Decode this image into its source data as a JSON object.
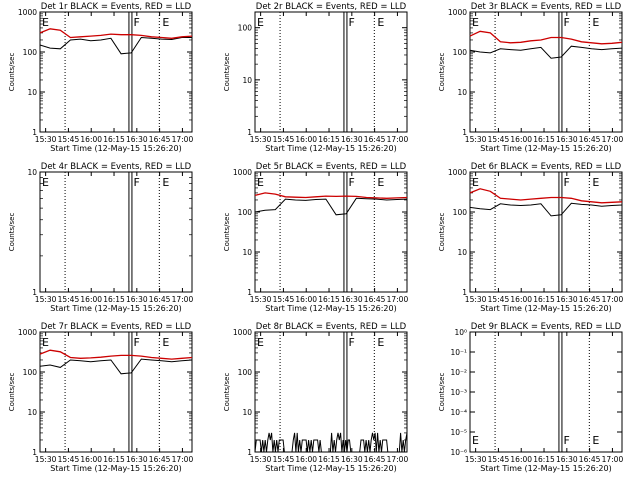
{
  "chart_data": [
    {
      "type": "line",
      "title": "Det 1r BLACK = Events, RED = LLD",
      "scale": "log",
      "ylabel": "Counts/sec",
      "xlabel": "Start Time (12-May-15 15:26:20)",
      "ytick_labels": [
        "1",
        "10",
        "100",
        "1000"
      ],
      "ylim": [
        1,
        1000
      ],
      "flags": [
        "E",
        "F",
        "E"
      ],
      "has_data": true,
      "series": [
        {
          "name": "Events",
          "color": "#000000",
          "values": [
            150,
            125,
            120,
            200,
            210,
            190,
            200,
            220,
            90,
            95,
            230,
            220,
            210,
            205,
            230,
            230
          ]
        },
        {
          "name": "LLD",
          "color": "#cc0000",
          "values": [
            300,
            380,
            350,
            230,
            240,
            250,
            260,
            280,
            270,
            270,
            260,
            240,
            230,
            220,
            240,
            250
          ]
        }
      ]
    },
    {
      "type": "line",
      "title": "Det 2r BLACK = Events, RED = LLD",
      "scale": "log",
      "ylabel": "Counts/sec",
      "xlabel": "Start Time (12-May-15 15:26:20)",
      "ytick_labels": [
        "1",
        "10",
        "100"
      ],
      "ylim": [
        1,
        200
      ],
      "flags": [
        "E",
        "F",
        "E"
      ],
      "has_data": false,
      "series": []
    },
    {
      "type": "line",
      "title": "Det 3r BLACK = Events, RED = LLD",
      "scale": "log",
      "ylabel": "Counts/sec",
      "xlabel": "Start Time (12-May-15 15:26:20)",
      "ytick_labels": [
        "1",
        "10",
        "100",
        "1000"
      ],
      "ylim": [
        1,
        1000
      ],
      "flags": [
        "E",
        "F",
        "E"
      ],
      "has_data": true,
      "series": [
        {
          "name": "Events",
          "color": "#000000",
          "values": [
            110,
            100,
            95,
            120,
            115,
            110,
            120,
            130,
            70,
            75,
            140,
            130,
            120,
            115,
            120,
            125
          ]
        },
        {
          "name": "LLD",
          "color": "#cc0000",
          "values": [
            250,
            330,
            300,
            180,
            170,
            175,
            190,
            200,
            230,
            230,
            210,
            180,
            170,
            160,
            165,
            175
          ]
        }
      ]
    },
    {
      "type": "line",
      "title": "Det 4r BLACK = Events, RED = LLD",
      "scale": "log",
      "ylabel": "Counts/sec",
      "xlabel": "Start Time (12-May-15 15:26:20)",
      "ytick_labels": [
        "1",
        "10"
      ],
      "ylim": [
        1,
        10
      ],
      "flags": [
        "E",
        "F",
        "E"
      ],
      "has_data": false,
      "series": []
    },
    {
      "type": "line",
      "title": "Det 5r BLACK = Events, RED = LLD",
      "scale": "log",
      "ylabel": "Counts/sec",
      "xlabel": "Start Time (12-May-15 15:26:20)",
      "ytick_labels": [
        "1",
        "10",
        "100",
        "1000"
      ],
      "ylim": [
        1,
        1000
      ],
      "flags": [
        "E",
        "F",
        "E"
      ],
      "has_data": true,
      "series": [
        {
          "name": "Events",
          "color": "#000000",
          "values": [
            100,
            110,
            115,
            210,
            200,
            195,
            205,
            210,
            85,
            90,
            220,
            215,
            210,
            200,
            205,
            210
          ]
        },
        {
          "name": "LLD",
          "color": "#cc0000",
          "values": [
            260,
            300,
            280,
            240,
            235,
            230,
            240,
            250,
            245,
            250,
            245,
            230,
            225,
            220,
            225,
            230
          ]
        }
      ]
    },
    {
      "type": "line",
      "title": "Det 6r BLACK = Events, RED = LLD",
      "scale": "log",
      "ylabel": "Counts/sec",
      "xlabel": "Start Time (12-May-15 15:26:20)",
      "ytick_labels": [
        "1",
        "10",
        "100",
        "1000"
      ],
      "ylim": [
        1,
        1000
      ],
      "flags": [
        "E",
        "F",
        "E"
      ],
      "has_data": true,
      "series": [
        {
          "name": "Events",
          "color": "#000000",
          "values": [
            130,
            120,
            115,
            160,
            150,
            145,
            150,
            160,
            80,
            85,
            165,
            155,
            150,
            140,
            145,
            150
          ]
        },
        {
          "name": "LLD",
          "color": "#cc0000",
          "values": [
            300,
            380,
            330,
            220,
            210,
            200,
            210,
            220,
            230,
            230,
            220,
            190,
            180,
            170,
            175,
            180
          ]
        }
      ]
    },
    {
      "type": "line",
      "title": "Det 7r BLACK = Events, RED = LLD",
      "scale": "log",
      "ylabel": "Counts/sec",
      "xlabel": "Start Time (12-May-15 15:26:20)",
      "ytick_labels": [
        "1",
        "10",
        "100",
        "1000"
      ],
      "ylim": [
        1,
        1000
      ],
      "flags": [
        "E",
        "F",
        "E"
      ],
      "has_data": true,
      "series": [
        {
          "name": "Events",
          "color": "#000000",
          "values": [
            140,
            150,
            130,
            200,
            190,
            180,
            190,
            200,
            90,
            95,
            210,
            200,
            190,
            180,
            190,
            200
          ]
        },
        {
          "name": "LLD",
          "color": "#cc0000",
          "values": [
            280,
            350,
            320,
            230,
            220,
            225,
            235,
            250,
            260,
            260,
            250,
            230,
            220,
            210,
            220,
            230
          ]
        }
      ]
    },
    {
      "type": "line",
      "title": "Det 8r BLACK = Events, RED = LLD",
      "scale": "log",
      "ylabel": "Counts/sec",
      "xlabel": "Start Time (12-May-15 15:26:20)",
      "ytick_labels": [
        "1",
        "10",
        "100",
        "1000"
      ],
      "ylim": [
        1,
        1000
      ],
      "flags": [
        "E",
        "F",
        "E"
      ],
      "has_data": true,
      "series": [
        {
          "name": "Events",
          "color": "#000000",
          "noisy": true,
          "values": [
            2,
            3,
            2,
            1,
            3,
            2,
            2,
            1,
            3,
            2,
            1,
            2,
            3,
            2,
            1,
            3
          ]
        }
      ]
    },
    {
      "type": "line",
      "title": "Det 9r BLACK = Events, RED = LLD",
      "scale": "log",
      "ylabel": "Counts/sec",
      "xlabel": "Start Time (12-May-15 15:26:20)",
      "ytick_labels": [
        "10⁰",
        "10⁻¹",
        "10⁻²",
        "10⁻³",
        "10⁻⁴",
        "10⁻⁵",
        "10⁻⁶"
      ],
      "ylim": [
        0,
        -6
      ],
      "flags": [
        "E",
        "F",
        "E"
      ],
      "has_data": false,
      "series": []
    }
  ],
  "x_ticks": [
    "15:30",
    "15:45",
    "16:00",
    "16:15",
    "16:30",
    "16:45",
    "17:00"
  ],
  "x_range_min": [
    0,
    100
  ],
  "x_tick_positions_min": [
    3.7,
    18.7,
    33.7,
    48.7,
    63.7,
    78.7,
    93.7
  ],
  "markers_min": [
    {
      "flag": "E",
      "t": 16.5
    },
    {
      "flag": "F",
      "t": 59.5
    },
    {
      "flag": "E",
      "t": 78.5
    }
  ],
  "colors": {
    "events": "#000000",
    "lld": "#cc0000",
    "background": "#ffffff"
  }
}
